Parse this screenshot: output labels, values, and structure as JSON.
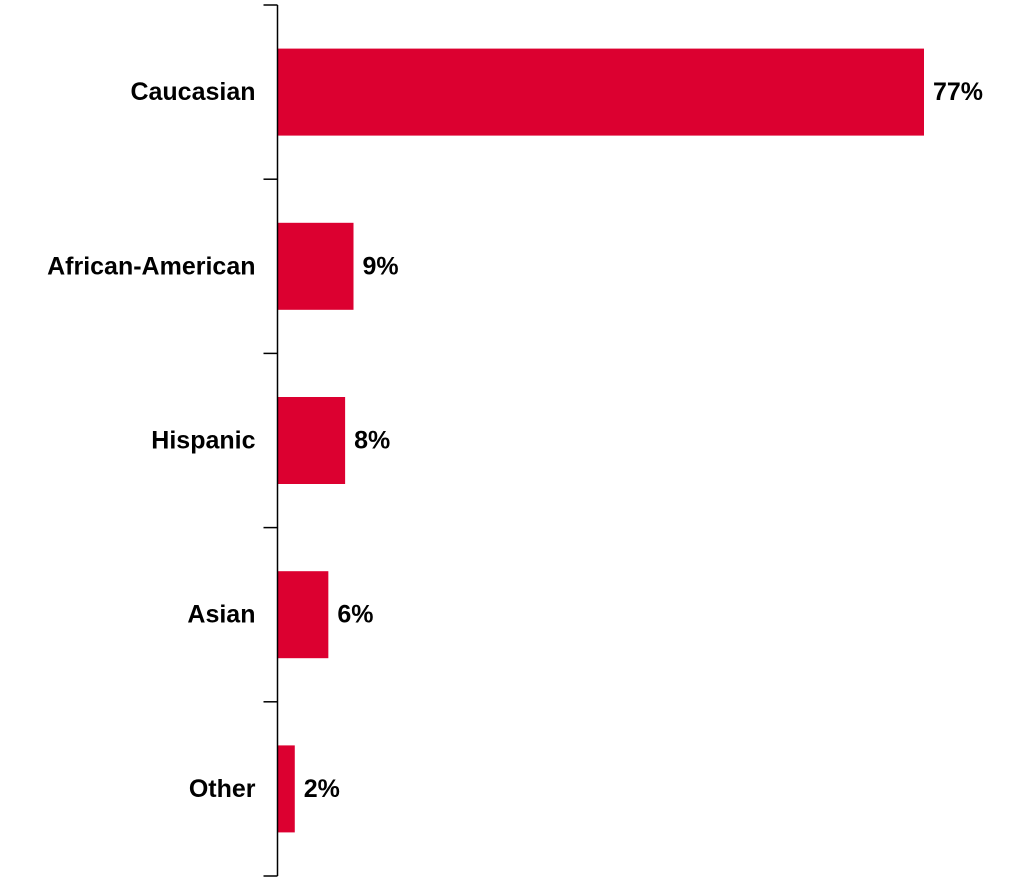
{
  "chart_data": {
    "type": "bar",
    "orientation": "horizontal",
    "categories": [
      "Caucasian",
      "African-American",
      "Hispanic",
      "Asian",
      "Other"
    ],
    "values": [
      77,
      9,
      8,
      6,
      2
    ],
    "value_labels": [
      "77%",
      "9%",
      "8%",
      "6%",
      "2%"
    ],
    "unit": "%",
    "title": "",
    "xlabel": "",
    "ylabel": "",
    "xlim": [
      0,
      77
    ],
    "grid": false,
    "legend": "none",
    "bar_color": "#DC0030",
    "axis_color": "#000000"
  }
}
